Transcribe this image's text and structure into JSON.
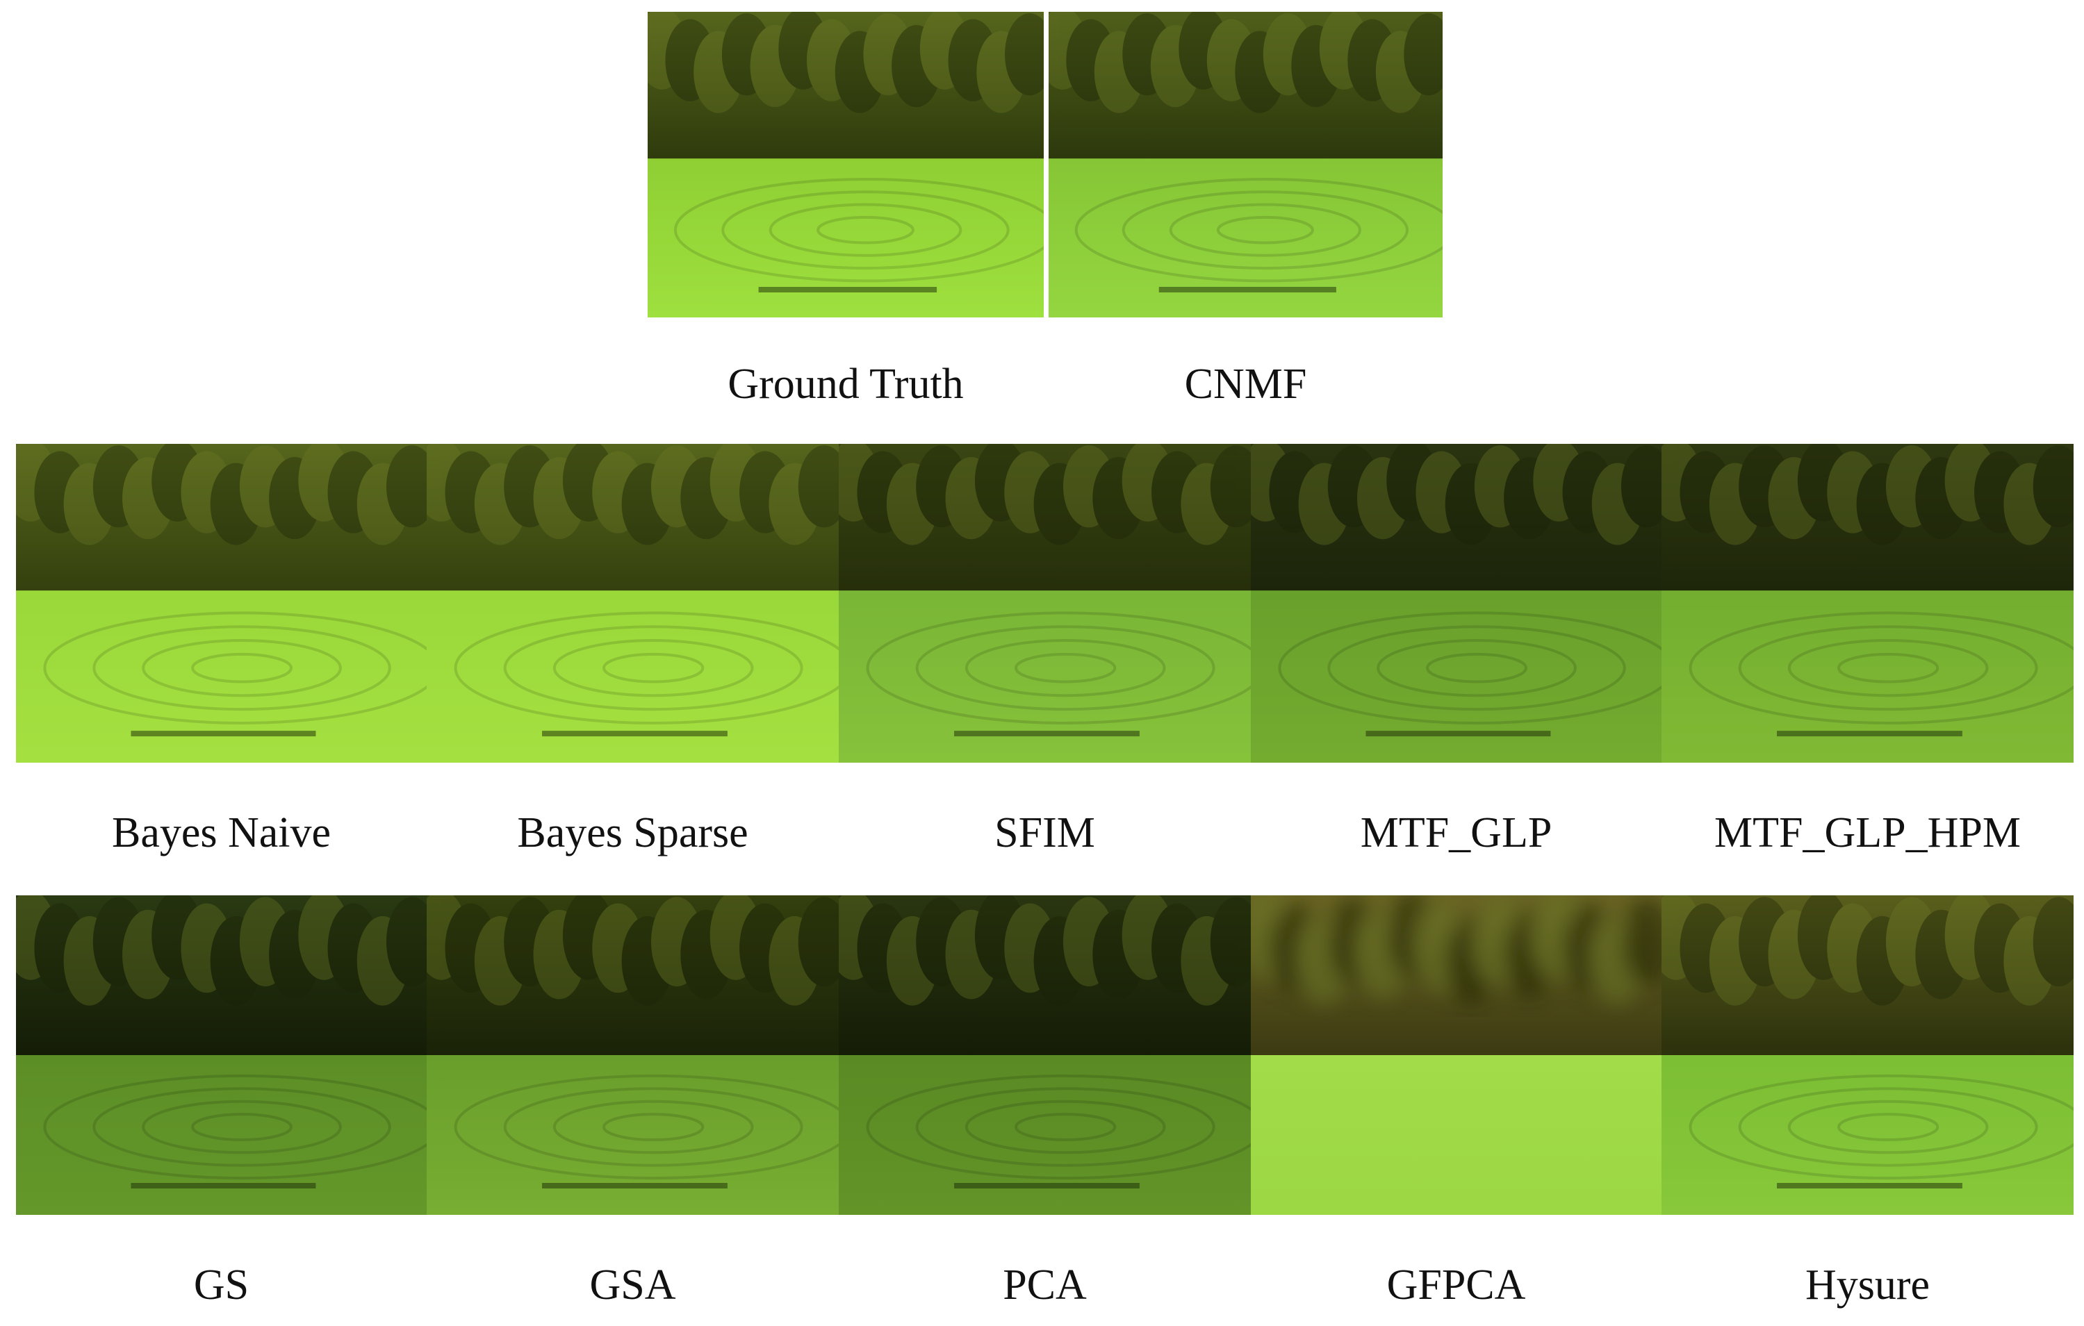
{
  "rows": [
    {
      "panels": [
        {
          "label": "Ground Truth"
        },
        {
          "label": "CNMF"
        }
      ]
    },
    {
      "panels": [
        {
          "label": "Bayes Naive"
        },
        {
          "label": "Bayes Sparse"
        },
        {
          "label": "SFIM"
        },
        {
          "label": "MTF_GLP"
        },
        {
          "label": "MTF_GLP_HPM"
        }
      ]
    },
    {
      "panels": [
        {
          "label": "GS"
        },
        {
          "label": "GSA"
        },
        {
          "label": "PCA"
        },
        {
          "label": "GFPCA"
        },
        {
          "label": "Hysure"
        }
      ]
    }
  ]
}
